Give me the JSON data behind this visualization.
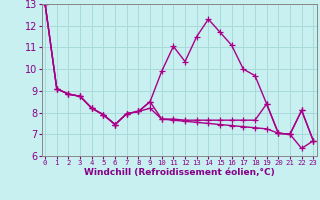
{
  "title": "",
  "xlabel": "Windchill (Refroidissement éolien,°C)",
  "bg_color": "#c8f0f0",
  "grid_color": "#a8dada",
  "line_color": "#aa0088",
  "xlim": [
    -0.3,
    23.3
  ],
  "ylim": [
    6,
    13
  ],
  "yticks": [
    6,
    7,
    8,
    9,
    10,
    11,
    12,
    13
  ],
  "xticks": [
    0,
    1,
    2,
    3,
    4,
    5,
    6,
    7,
    8,
    9,
    10,
    11,
    12,
    13,
    14,
    15,
    16,
    17,
    18,
    19,
    20,
    21,
    22,
    23
  ],
  "series": [
    [
      13.0,
      9.1,
      8.85,
      8.75,
      8.2,
      7.9,
      7.45,
      7.95,
      8.05,
      8.5,
      9.9,
      11.05,
      10.35,
      11.5,
      12.3,
      11.7,
      11.1,
      10.0,
      9.7,
      8.4,
      7.05,
      7.0,
      8.1,
      6.7
    ],
    [
      13.0,
      9.1,
      8.85,
      8.75,
      8.2,
      7.9,
      7.45,
      7.95,
      8.05,
      8.5,
      7.7,
      7.7,
      7.65,
      7.65,
      7.65,
      7.65,
      7.65,
      7.65,
      7.65,
      8.4,
      7.05,
      7.0,
      8.1,
      6.7
    ],
    [
      13.0,
      9.1,
      8.85,
      8.75,
      8.2,
      7.9,
      7.45,
      7.95,
      8.05,
      8.2,
      7.7,
      7.65,
      7.6,
      7.55,
      7.5,
      7.45,
      7.4,
      7.35,
      7.3,
      7.25,
      7.05,
      7.0,
      6.35,
      6.7
    ]
  ],
  "marker": "+",
  "markersize": 4,
  "linewidth": 1.0,
  "tick_color": "#880088",
  "label_fontsize": 6.0,
  "xlabel_fontsize": 6.5,
  "ytick_fontsize": 7.0,
  "xtick_fontsize": 5.2
}
